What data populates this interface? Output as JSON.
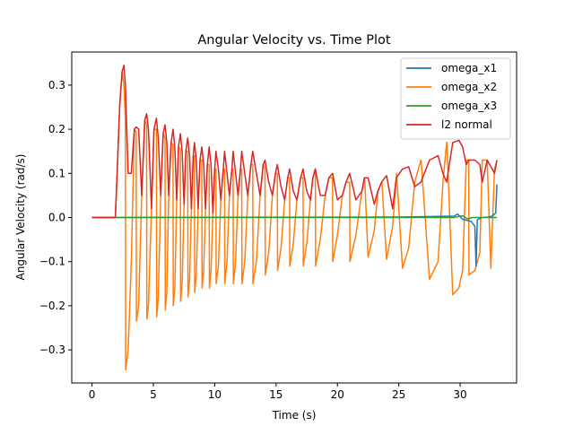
{
  "chart_data": {
    "type": "line",
    "title": "Angular Velocity vs. Time Plot",
    "xlabel": "Time (s)",
    "ylabel": "Angular Velocity (rad/s)",
    "xlim": [
      -1.65,
      34.6
    ],
    "ylim": [
      -0.375,
      0.375
    ],
    "x_ticks": [
      0,
      5,
      10,
      15,
      20,
      25,
      30
    ],
    "y_ticks": [
      -0.3,
      -0.2,
      -0.1,
      0.0,
      0.1,
      0.2,
      0.3
    ],
    "x_tick_labels": [
      "0",
      "5",
      "10",
      "15",
      "20",
      "25",
      "30"
    ],
    "y_tick_labels": [
      "−0.3",
      "−0.2",
      "−0.1",
      "0.0",
      "0.1",
      "0.2",
      "0.3"
    ],
    "grid": false,
    "legend_position": "top-right",
    "series": [
      {
        "name": "omega_x1",
        "color": "#1f77b4",
        "x": [
          0,
          2.0,
          25.0,
          29.5,
          29.8,
          30.2,
          30.5,
          30.9,
          31.2,
          31.3,
          31.4,
          31.8,
          32.3,
          32.6,
          32.9,
          33.0
        ],
        "y": [
          0,
          0,
          0.001,
          0.003,
          0.008,
          -0.004,
          -0.006,
          -0.009,
          -0.02,
          -0.11,
          -0.005,
          0.0,
          0.001,
          0.003,
          0.01,
          0.075
        ]
      },
      {
        "name": "omega_x2",
        "color": "#ff7f0e",
        "x": [
          0,
          1.9,
          2.05,
          2.25,
          2.45,
          2.6,
          2.72,
          2.74,
          2.95,
          3.2,
          3.45,
          3.6,
          3.62,
          3.8,
          4.05,
          4.3,
          4.45,
          4.47,
          4.6,
          4.85,
          5.05,
          5.25,
          5.27,
          5.4,
          5.6,
          5.8,
          5.95,
          5.97,
          6.1,
          6.25,
          6.45,
          6.6,
          6.62,
          6.75,
          6.9,
          7.05,
          7.2,
          7.22,
          7.35,
          7.5,
          7.65,
          7.8,
          7.82,
          7.95,
          8.1,
          8.25,
          8.35,
          8.37,
          8.5,
          8.65,
          8.8,
          8.95,
          8.97,
          9.1,
          9.25,
          9.4,
          9.55,
          9.57,
          9.7,
          9.85,
          10.0,
          10.1,
          10.12,
          10.3,
          10.5,
          10.7,
          10.8,
          10.82,
          11.0,
          11.2,
          11.4,
          11.5,
          11.52,
          11.7,
          11.9,
          12.1,
          12.2,
          12.22,
          12.45,
          12.7,
          12.95,
          13.1,
          13.12,
          13.4,
          13.7,
          13.95,
          14.1,
          14.12,
          14.4,
          14.7,
          14.95,
          15.1,
          15.12,
          15.4,
          15.7,
          15.95,
          16.1,
          16.12,
          16.4,
          16.7,
          17.0,
          17.2,
          17.22,
          17.5,
          17.8,
          18.0,
          18.2,
          18.22,
          18.6,
          19.0,
          19.3,
          19.6,
          19.62,
          20.0,
          20.4,
          20.7,
          21.0,
          21.02,
          21.5,
          22.0,
          22.2,
          22.22,
          22.5,
          23.0,
          23.3,
          23.6,
          23.62,
          24.0,
          24.5,
          24.8,
          24.82,
          25.3,
          25.8,
          26.3,
          26.8,
          26.82,
          27.5,
          28.2,
          28.6,
          28.9,
          28.92,
          29.4,
          29.9,
          30.2,
          30.5,
          30.7,
          30.72,
          31.2,
          31.6,
          31.8,
          32.2,
          32.5,
          32.52,
          32.8,
          33.0
        ],
        "y": [
          0,
          0,
          0.1,
          0.25,
          0.33,
          0.3,
          0.22,
          -0.345,
          -0.3,
          -0.1,
          0.2,
          0.195,
          -0.235,
          -0.2,
          0.05,
          0.22,
          0.21,
          -0.23,
          -0.2,
          0.02,
          0.2,
          0.2,
          -0.225,
          -0.18,
          0.05,
          0.19,
          0.18,
          -0.21,
          -0.17,
          0.05,
          0.17,
          0.165,
          -0.2,
          -0.16,
          0.04,
          0.16,
          0.155,
          -0.19,
          -0.15,
          0.03,
          0.15,
          0.15,
          -0.18,
          -0.14,
          0.02,
          0.14,
          0.14,
          -0.17,
          -0.13,
          0.02,
          0.13,
          0.13,
          -0.16,
          -0.12,
          0.02,
          0.12,
          0.12,
          -0.16,
          -0.12,
          0.01,
          0.11,
          0.11,
          -0.15,
          -0.11,
          0.04,
          0.11,
          0.11,
          -0.15,
          -0.1,
          0.05,
          0.11,
          0.11,
          -0.15,
          -0.1,
          0.05,
          0.11,
          0.11,
          -0.15,
          -0.1,
          0.05,
          0.12,
          0.12,
          -0.15,
          -0.1,
          0.05,
          0.12,
          0.11,
          -0.13,
          -0.08,
          0.05,
          0.1,
          0.1,
          -0.12,
          -0.07,
          0.04,
          0.09,
          0.09,
          -0.11,
          -0.06,
          0.04,
          0.09,
          0.09,
          -0.11,
          -0.06,
          0.04,
          0.09,
          0.11,
          -0.11,
          -0.05,
          0.05,
          0.09,
          0.09,
          -0.1,
          -0.04,
          0.05,
          0.08,
          0.08,
          -0.1,
          -0.04,
          0.06,
          0.09,
          0.09,
          -0.09,
          -0.03,
          0.06,
          0.08,
          0.08,
          -0.095,
          -0.02,
          0.09,
          0.1,
          -0.115,
          -0.07,
          0.08,
          0.13,
          0.13,
          -0.14,
          -0.1,
          0.08,
          0.17,
          0.17,
          -0.175,
          -0.16,
          -0.12,
          0.13,
          0.13,
          -0.13,
          -0.12,
          -0.08,
          0.13,
          0.13,
          -0.115,
          -0.1,
          0.11,
          0.13
        ]
      },
      {
        "name": "omega_x3",
        "color": "#2ca02c",
        "x": [
          0,
          2.0,
          10.0,
          20.0,
          29.5,
          30.2,
          30.6,
          31.0,
          33.0
        ],
        "y": [
          0,
          0,
          0.0,
          0.0,
          0.0,
          0.004,
          -0.003,
          0.0,
          0.0
        ]
      },
      {
        "name": "l2 normal",
        "color": "#d62728",
        "x": [
          0,
          1.9,
          2.05,
          2.25,
          2.45,
          2.6,
          2.72,
          2.95,
          3.2,
          3.45,
          3.6,
          3.8,
          4.05,
          4.3,
          4.45,
          4.6,
          4.85,
          5.05,
          5.25,
          5.4,
          5.6,
          5.8,
          5.95,
          6.1,
          6.25,
          6.45,
          6.6,
          6.75,
          6.9,
          7.05,
          7.2,
          7.35,
          7.5,
          7.65,
          7.8,
          7.95,
          8.1,
          8.25,
          8.35,
          8.5,
          8.65,
          8.8,
          8.95,
          9.1,
          9.25,
          9.4,
          9.55,
          9.7,
          9.85,
          10.0,
          10.1,
          10.3,
          10.5,
          10.7,
          10.8,
          11.0,
          11.2,
          11.4,
          11.5,
          11.7,
          11.9,
          12.1,
          12.2,
          12.45,
          12.7,
          12.95,
          13.1,
          13.4,
          13.7,
          13.95,
          14.1,
          14.4,
          14.7,
          14.95,
          15.1,
          15.4,
          15.7,
          15.95,
          16.1,
          16.4,
          16.7,
          17.0,
          17.2,
          17.5,
          17.8,
          18.0,
          18.2,
          18.6,
          19.0,
          19.3,
          19.6,
          20.0,
          20.4,
          20.7,
          21.0,
          21.5,
          22.0,
          22.2,
          22.5,
          23.0,
          23.3,
          23.6,
          24.0,
          24.5,
          24.8,
          25.3,
          25.8,
          26.3,
          26.8,
          27.5,
          28.2,
          28.6,
          28.9,
          29.4,
          29.9,
          30.2,
          30.5,
          30.7,
          31.2,
          31.6,
          31.8,
          32.2,
          32.5,
          32.8,
          33.0
        ],
        "y": [
          0,
          0,
          0.1,
          0.25,
          0.33,
          0.345,
          0.3,
          0.1,
          0.1,
          0.2,
          0.205,
          0.2,
          0.05,
          0.22,
          0.235,
          0.2,
          0.02,
          0.2,
          0.225,
          0.18,
          0.05,
          0.19,
          0.21,
          0.17,
          0.05,
          0.17,
          0.2,
          0.16,
          0.04,
          0.16,
          0.19,
          0.15,
          0.03,
          0.15,
          0.18,
          0.14,
          0.02,
          0.14,
          0.17,
          0.13,
          0.02,
          0.13,
          0.16,
          0.12,
          0.02,
          0.12,
          0.16,
          0.12,
          0.01,
          0.11,
          0.15,
          0.11,
          0.04,
          0.11,
          0.15,
          0.1,
          0.05,
          0.11,
          0.15,
          0.1,
          0.05,
          0.11,
          0.15,
          0.1,
          0.05,
          0.12,
          0.15,
          0.1,
          0.05,
          0.12,
          0.13,
          0.08,
          0.05,
          0.1,
          0.12,
          0.07,
          0.04,
          0.09,
          0.11,
          0.06,
          0.04,
          0.09,
          0.11,
          0.06,
          0.04,
          0.09,
          0.11,
          0.05,
          0.05,
          0.09,
          0.1,
          0.04,
          0.05,
          0.08,
          0.1,
          0.04,
          0.06,
          0.09,
          0.09,
          0.03,
          0.06,
          0.08,
          0.095,
          0.02,
          0.09,
          0.11,
          0.115,
          0.07,
          0.08,
          0.13,
          0.14,
          0.1,
          0.08,
          0.17,
          0.175,
          0.16,
          0.12,
          0.13,
          0.13,
          0.12,
          0.08,
          0.13,
          0.115,
          0.1,
          0.13
        ]
      }
    ]
  }
}
